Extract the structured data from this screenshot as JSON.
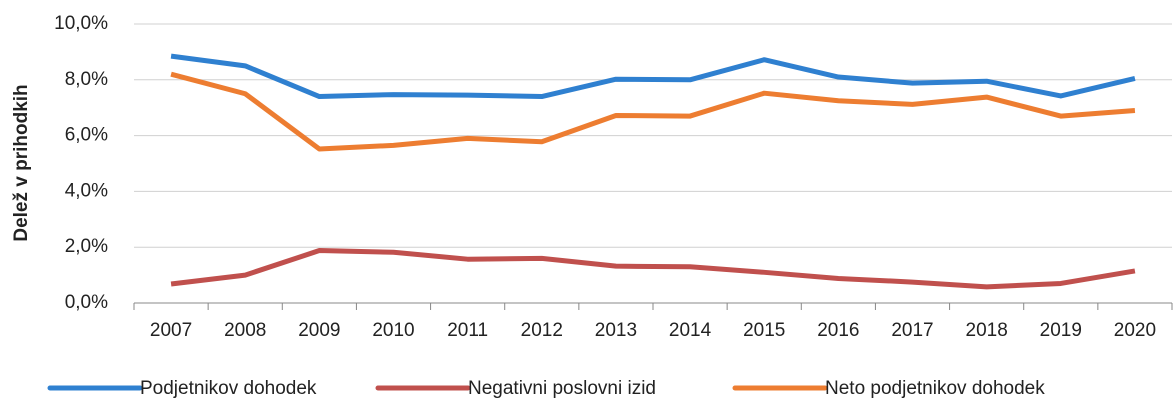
{
  "chart_data": {
    "type": "line",
    "y_label": "Delež v prihodkih",
    "categories": [
      "2007",
      "2008",
      "2009",
      "2010",
      "2011",
      "2012",
      "2013",
      "2014",
      "2015",
      "2016",
      "2017",
      "2018",
      "2019",
      "2020"
    ],
    "series": [
      {
        "name": "Podjetnikov dohodek",
        "color": "#2f80d0",
        "values": [
          8.85,
          8.5,
          7.4,
          7.47,
          7.45,
          7.4,
          8.02,
          8.0,
          8.72,
          8.1,
          7.88,
          7.95,
          7.42,
          8.05
        ]
      },
      {
        "name": "Negativni poslovni izid",
        "color": "#c0504d",
        "values": [
          0.68,
          1.0,
          1.88,
          1.82,
          1.57,
          1.6,
          1.32,
          1.3,
          1.1,
          0.88,
          0.75,
          0.58,
          0.7,
          1.15
        ]
      },
      {
        "name": "Neto podjetnikov dohodek",
        "color": "#ed7d31",
        "values": [
          8.2,
          7.5,
          5.52,
          5.65,
          5.9,
          5.78,
          6.72,
          6.7,
          7.52,
          7.25,
          7.12,
          7.38,
          6.7,
          6.9
        ]
      }
    ],
    "ylim": [
      0,
      10
    ],
    "yticks": [
      {
        "value": 0,
        "label": "0,0%"
      },
      {
        "value": 2,
        "label": "2,0%"
      },
      {
        "value": 4,
        "label": "4,0%"
      },
      {
        "value": 6,
        "label": "6,0%"
      },
      {
        "value": 8,
        "label": "8,0%"
      },
      {
        "value": 10,
        "label": "10,0%"
      }
    ],
    "grid": true,
    "legend": "bottom"
  }
}
